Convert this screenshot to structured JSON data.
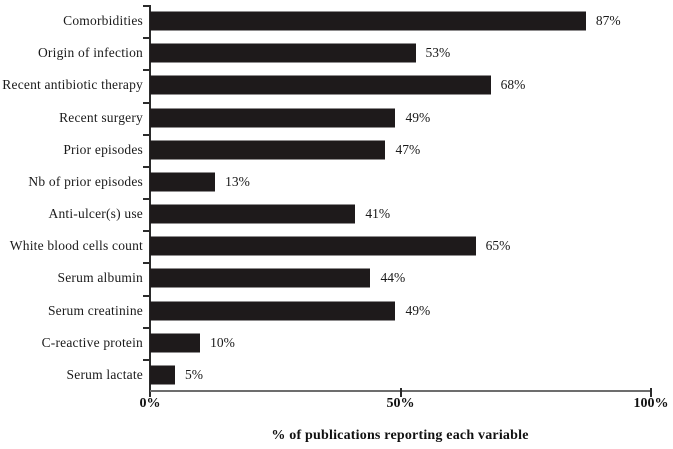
{
  "chart_data": {
    "type": "bar",
    "orientation": "horizontal",
    "title": "",
    "xlabel": "% of publications reporting each variable",
    "ylabel": "",
    "categories": [
      "Comorbidities",
      "Origin of infection",
      "Recent antibiotic therapy",
      "Recent surgery",
      "Prior episodes",
      "Nb of prior episodes",
      "Anti-ulcer(s) use",
      "White blood cells count",
      "Serum albumin",
      "Serum creatinine",
      "C-reactive protein",
      "Serum lactate"
    ],
    "values": [
      87,
      53,
      68,
      49,
      47,
      13,
      41,
      65,
      44,
      49,
      10,
      5
    ],
    "value_labels": [
      "87%",
      "53%",
      "68%",
      "49%",
      "47%",
      "13%",
      "41%",
      "65%",
      "44%",
      "49%",
      "10%",
      "5%"
    ],
    "xlim": [
      0,
      100
    ],
    "x_tick_labels": [
      "0%",
      "50%",
      "100%"
    ],
    "x_tick_values": [
      0,
      50,
      100
    ],
    "grid": false,
    "legend": false,
    "bar_color": "#1e1a1b",
    "x_axis_color": "#6d6d6d",
    "y_axis_color": "#2b2b2b",
    "background_color": "#ffffff"
  }
}
